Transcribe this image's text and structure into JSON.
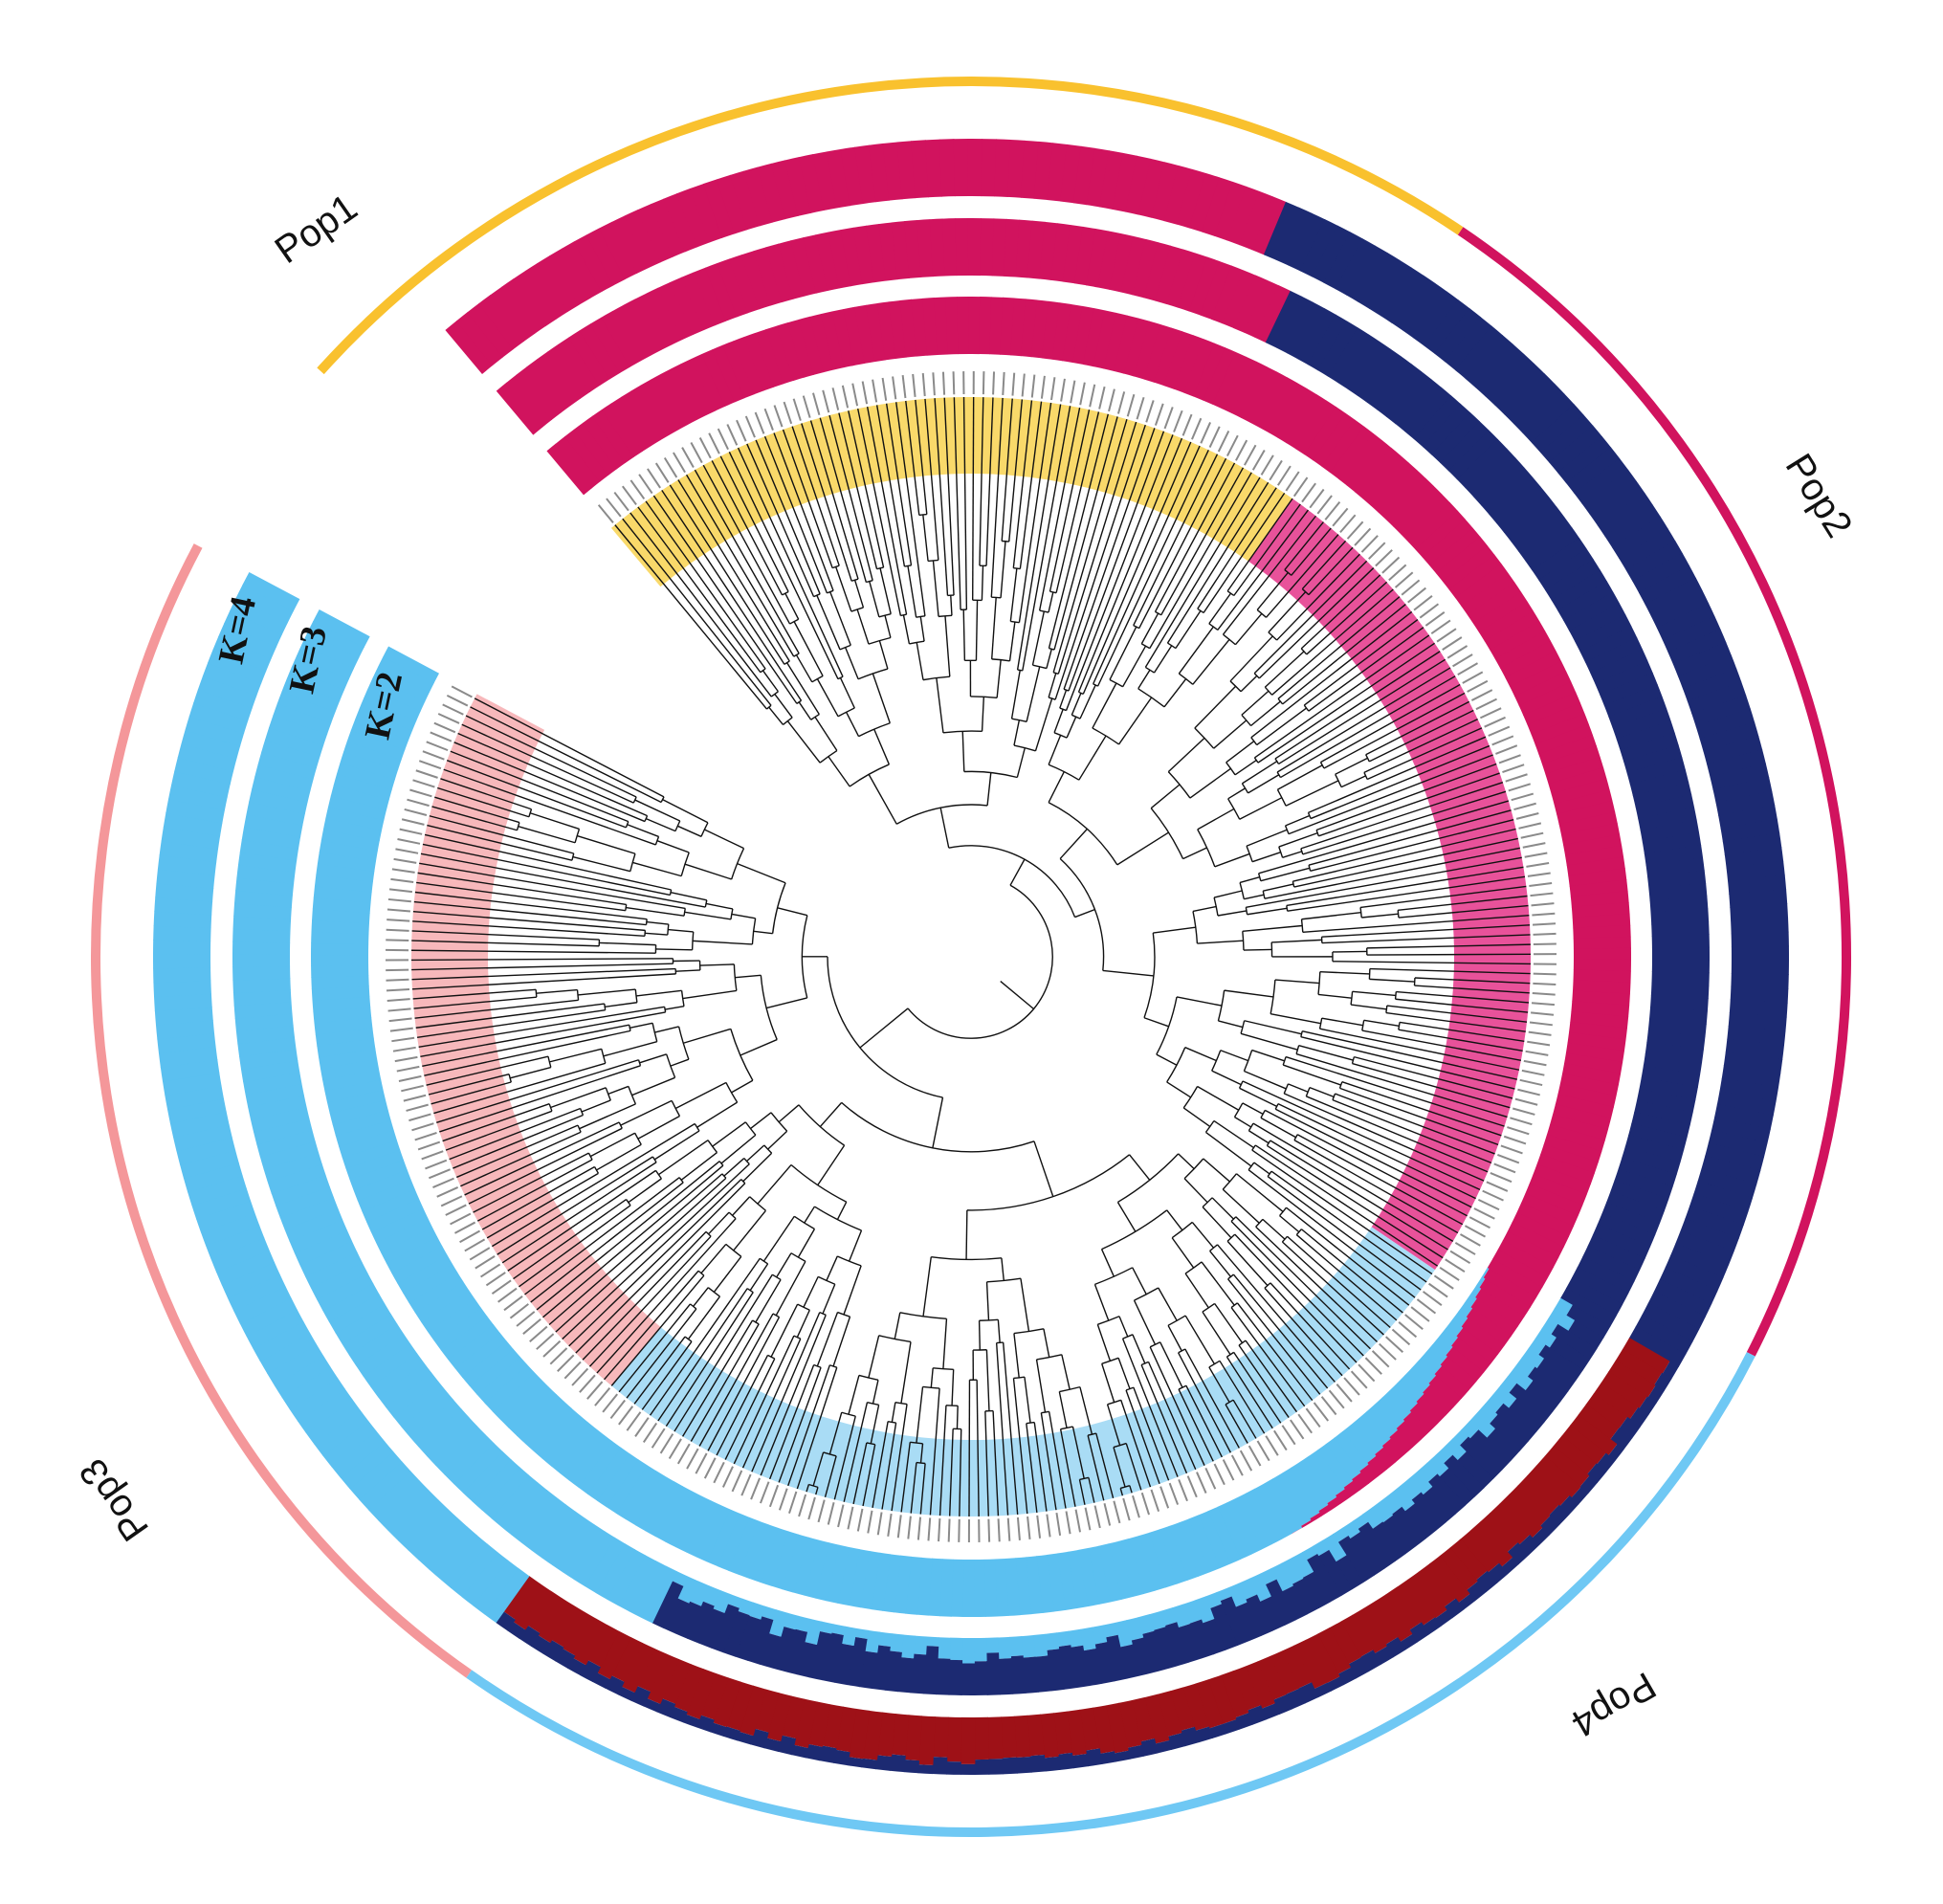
{
  "population_labels": {
    "pop1": "Pop1",
    "pop2": "Pop2",
    "pop3": "Pop3",
    "pop4": "Pop4"
  },
  "k_labels": {
    "k2": "K=2",
    "k3": "K=3",
    "k4": "K=4"
  },
  "colors": {
    "pop1": "#f9c12e",
    "pop2": "#d1135e",
    "pop3": "#f4979a",
    "pop4": "#6fc8f4",
    "cluster_magenta": "#d1135e",
    "cluster_blue": "#5bc0f0",
    "cluster_navy": "#1c2a72",
    "cluster_red": "#9e1117",
    "clade_pop1": "#f9d96a",
    "clade_pop2": "#e8529a",
    "clade_pop3": "#f7b8bb",
    "clade_pop4": "#a9dcf5"
  }
}
